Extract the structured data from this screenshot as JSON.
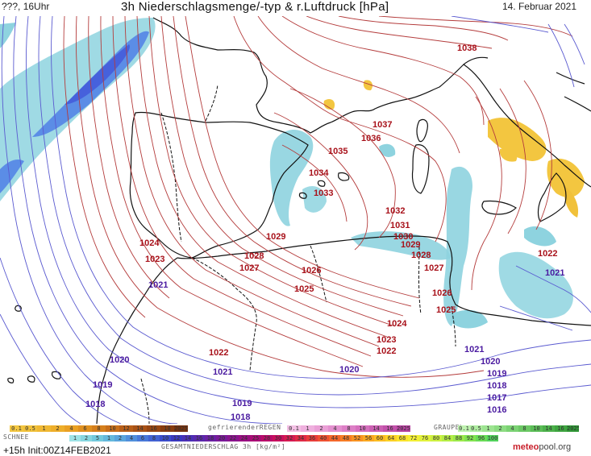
{
  "header": {
    "left": "???, 16Uhr",
    "title": "3h Niederschlagsmenge/-typ & r.Luftdruck [hPa]",
    "date": "14. Februar 2021"
  },
  "isobars_red": [
    {
      "text": "1038"
    },
    {
      "text": "1037"
    },
    {
      "text": "1036"
    },
    {
      "text": "1035"
    },
    {
      "text": "1034"
    },
    {
      "text": "1033"
    },
    {
      "text": "1032"
    },
    {
      "text": "1031"
    },
    {
      "text": "1030"
    },
    {
      "text": "1029"
    },
    {
      "text": "1029"
    },
    {
      "text": "1028"
    },
    {
      "text": "1028"
    },
    {
      "text": "1027"
    },
    {
      "text": "1027"
    },
    {
      "text": "1026"
    },
    {
      "text": "1026"
    },
    {
      "text": "1025"
    },
    {
      "text": "1025"
    },
    {
      "text": "1024"
    },
    {
      "text": "1024"
    },
    {
      "text": "1023"
    },
    {
      "text": "1023"
    },
    {
      "text": "1022"
    },
    {
      "text": "1022"
    },
    {
      "text": "1022"
    }
  ],
  "isobars_blue": [
    {
      "text": "1021"
    },
    {
      "text": "1021"
    },
    {
      "text": "1021"
    },
    {
      "text": "1021"
    },
    {
      "text": "1020"
    },
    {
      "text": "1020"
    },
    {
      "text": "1020"
    },
    {
      "text": "1019"
    },
    {
      "text": "1019"
    },
    {
      "text": "1019"
    },
    {
      "text": "1018"
    },
    {
      "text": "1018"
    },
    {
      "text": "1018"
    },
    {
      "text": "1017"
    },
    {
      "text": "1016"
    }
  ],
  "legend": {
    "snow_title": "SCHNEE",
    "freezing_title": "gefrierenderREGEN",
    "graupel_title": "GRAUPEL",
    "total_title": "GESAMTNIEDERSCHLAG 3h [kg/m²]",
    "snow_values": [
      "0.1",
      "0.5",
      "1",
      "2",
      "4",
      "6",
      "8",
      "10",
      "12",
      "14",
      "16",
      "18",
      "2025+"
    ],
    "freezing_values": [
      "0.1",
      "1",
      "2",
      "4",
      "8",
      "10",
      "14",
      "16",
      "2025+"
    ],
    "graupel_values": [
      "0.1",
      "0.5",
      "1",
      "2",
      "4",
      "8",
      "10",
      "14",
      "16",
      "2025+"
    ],
    "total_values": [
      "1",
      "2",
      "5",
      "1",
      "2",
      "4",
      "6",
      "8",
      "10",
      "12",
      "14",
      "16",
      "18",
      "20",
      "22",
      "24",
      "25",
      "28",
      "30",
      "32",
      "34",
      "36",
      "40",
      "44",
      "48",
      "52",
      "56",
      "60",
      "64",
      "68",
      "72",
      "76",
      "80",
      "84",
      "88",
      "92",
      "96",
      "100"
    ],
    "snow_colors": [
      "#f3c640",
      "#f1c13a",
      "#f0b832",
      "#eeae2a",
      "#e9a024",
      "#e0901f",
      "#d57f1c",
      "#c86e1a",
      "#b85e18",
      "#a85216",
      "#974612",
      "#873c10",
      "#77320e"
    ],
    "freezing_colors": [
      "#f3c0e4",
      "#efb0de",
      "#eaa0d6",
      "#e490cf",
      "#dd7fc6",
      "#d56fbd",
      "#cc60b3",
      "#c251aa",
      "#b742a0"
    ],
    "graupel_colors": [
      "#bff2b0",
      "#aeeca0",
      "#9de491",
      "#8cdc82",
      "#7bd273",
      "#6bc864",
      "#5bbd57",
      "#4cb14b",
      "#3ea540",
      "#309836"
    ],
    "total_colors": [
      "#9ee3e6",
      "#86d6e0",
      "#72c9dd",
      "#64b8dc",
      "#5aa5dc",
      "#508fdb",
      "#4878d8",
      "#4262d3",
      "#3a4ccb",
      "#3a38bf",
      "#4a2fb6",
      "#5a28ac",
      "#6a21a2",
      "#7a1a98",
      "#8a148d",
      "#9a0f82",
      "#aa0c76",
      "#ba0b6a",
      "#c90f5e",
      "#d51a52",
      "#df2a46",
      "#e83d3b",
      "#ef5132",
      "#f4672b",
      "#f77d25",
      "#f99322",
      "#faa821",
      "#fbbd22",
      "#fbd126",
      "#fae32d",
      "#f3ef36",
      "#e2f23c",
      "#cdf141",
      "#b5ee46",
      "#9ce94b",
      "#82e350",
      "#69db56",
      "#52d25c"
    ],
    "init": "+15h Init:00Z14FEB2021",
    "logo_main": "meteo",
    "logo_tail": "pool.org"
  }
}
